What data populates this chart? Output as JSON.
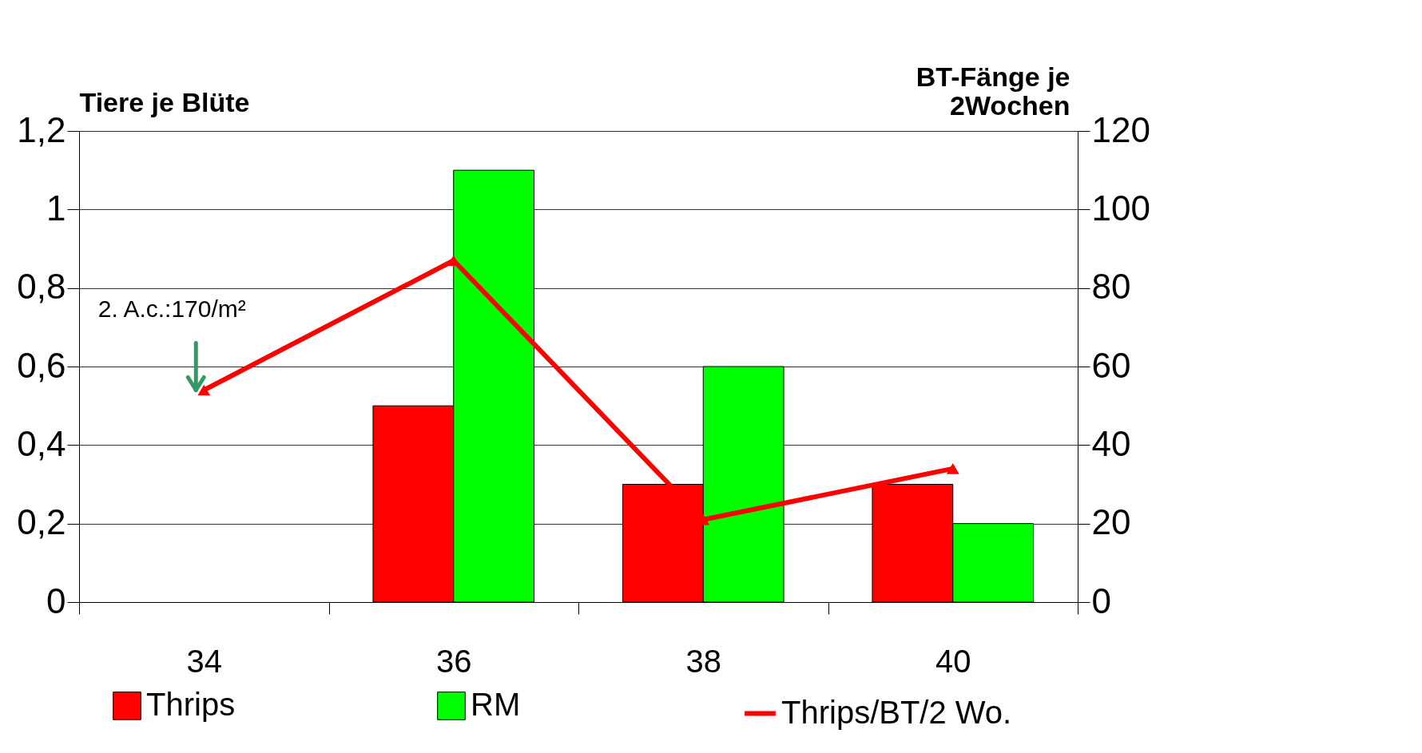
{
  "chart_data": {
    "type": "bar",
    "xlabel": null,
    "ylabel": "Tiere je Blüte",
    "y2label": "BT-Fänge je\n2Wochen",
    "categories": [
      "34",
      "36",
      "38",
      "40"
    ],
    "series": [
      {
        "name": "Thrips",
        "color": "#ff0000",
        "values": [
          null,
          0.5,
          0.3,
          0.3
        ]
      },
      {
        "name": "RM",
        "color": "#00ff00",
        "values": [
          null,
          1.1,
          0.6,
          0.2
        ]
      },
      {
        "name": "Thrips/BT/2 Wo.",
        "type": "line",
        "axis": "y2",
        "color": "#ff0000",
        "marker": "triangle",
        "values": [
          54,
          87,
          21,
          34
        ]
      }
    ],
    "ylim": [
      0,
      1.2
    ],
    "yticks": [
      0,
      {
        "value": 0.2,
        "label": "0,2"
      },
      {
        "value": 0.4,
        "label": "0,4"
      },
      {
        "value": 0.6,
        "label": "0,6"
      },
      {
        "value": 0.8,
        "label": "0,8"
      },
      1,
      {
        "value": 1.2,
        "label": "1,2"
      }
    ],
    "y2lim": [
      0,
      120
    ],
    "y2ticks": [
      0,
      20,
      40,
      60,
      80,
      100,
      120
    ],
    "annotations": [
      "2. A.c.:170/m²"
    ],
    "grid": "y",
    "legend": "bottom"
  }
}
